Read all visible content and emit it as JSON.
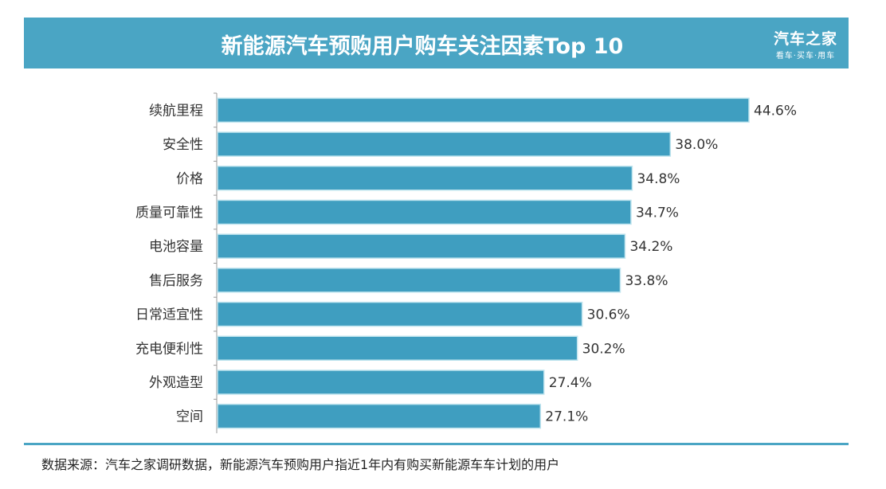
{
  "header": {
    "title": "新能源汽车预购用户购车关注因素Top 10",
    "logo_main": "汽车之家",
    "logo_sub": "看车·买车·用车"
  },
  "footer": {
    "source": "数据来源：汽车之家调研数据，新能源汽车预购用户指近1年内有购买新能源车车计划的用户"
  },
  "colors": {
    "bar": "#3f9ec0",
    "header": "#4aa5c4"
  },
  "chart_data": {
    "type": "bar",
    "orientation": "horizontal",
    "title": "新能源汽车预购用户购车关注因素Top 10",
    "unit": "%",
    "categories": [
      "续航里程",
      "安全性",
      "价格",
      "质量可靠性",
      "电池容量",
      "售后服务",
      "日常适宜性",
      "充电便利性",
      "外观造型",
      "空间"
    ],
    "values": [
      44.6,
      38.0,
      34.8,
      34.7,
      34.2,
      33.8,
      30.6,
      30.2,
      27.4,
      27.1
    ],
    "labels": [
      "44.6%",
      "38.0%",
      "34.8%",
      "34.7%",
      "34.2%",
      "33.8%",
      "30.6%",
      "30.2%",
      "27.4%",
      "27.1%"
    ],
    "xlim": [
      0,
      44.6
    ],
    "grid": false
  }
}
